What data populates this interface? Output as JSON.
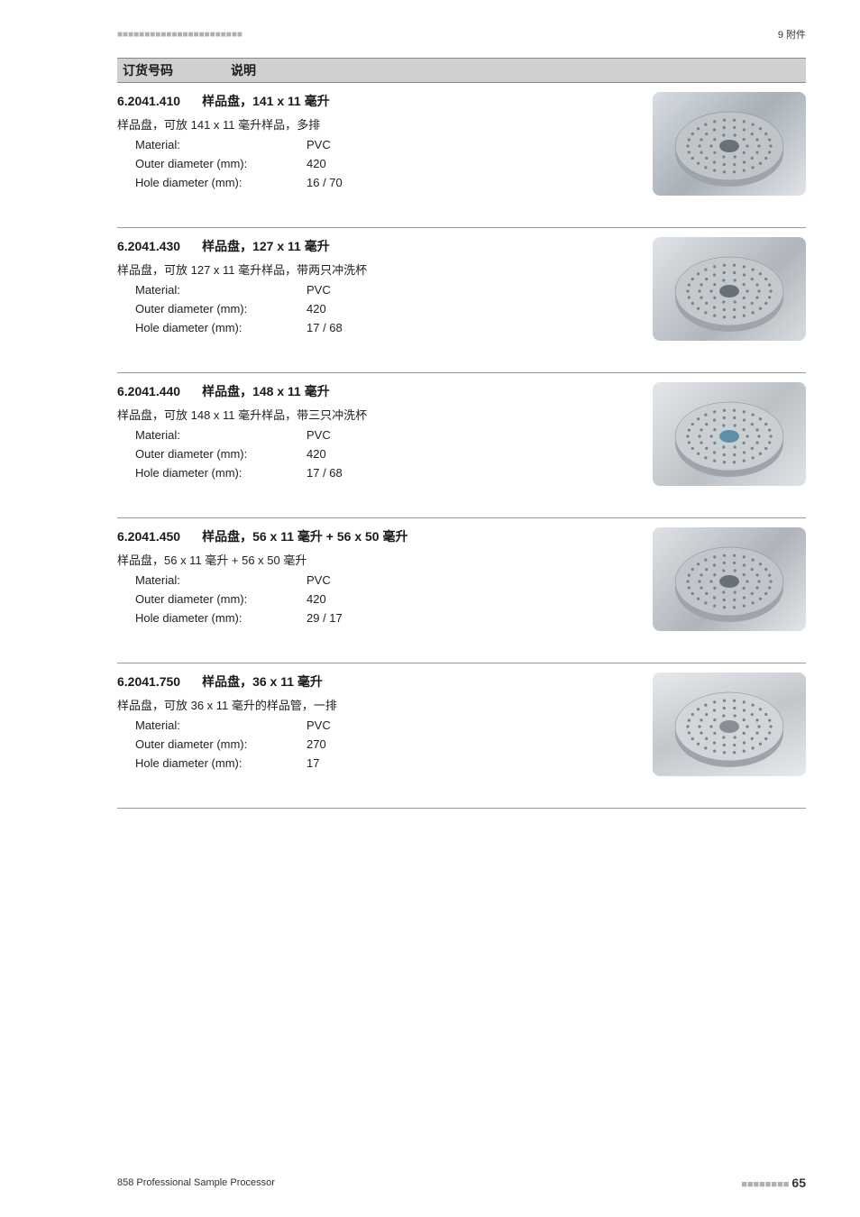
{
  "topbar": {
    "left_dashes": "■■■■■■■■■■■■■■■■■■■■■■■",
    "right": "9 附件"
  },
  "header": {
    "col1": "订货号码",
    "col2": "说明"
  },
  "products": [
    {
      "code": "6.2041.410",
      "name": "样品盘，141 x 11 毫升",
      "desc": "样品盘，可放 141 x 11 毫升样品，多排",
      "specs": [
        {
          "label": "Material:",
          "value": "PVC"
        },
        {
          "label": "Outer diameter (mm):",
          "value": "420"
        },
        {
          "label": "Hole diameter (mm):",
          "value": "16 / 70"
        }
      ],
      "img_bg": "linear-gradient(135deg,#d8dde2 0%,#a8b0b8 50%,#e0e4e8 100%)",
      "disc_color": "#c0c5ca",
      "hub_color": "#6a7078"
    },
    {
      "code": "6.2041.430",
      "name": "样品盘，127 x 11 毫升",
      "desc": "样品盘，可放 127 x 11 毫升样品，带两只冲洗杯",
      "specs": [
        {
          "label": "Material:",
          "value": "PVC"
        },
        {
          "label": "Outer diameter (mm):",
          "value": "420"
        },
        {
          "label": "Hole diameter (mm):",
          "value": "17 / 68"
        }
      ],
      "img_bg": "linear-gradient(135deg,#e0e4e8 0%,#b0b6bc 60%,#d8dce0 100%)",
      "disc_color": "#c4c9ce",
      "hub_color": "#6a7078"
    },
    {
      "code": "6.2041.440",
      "name": "样品盘，148 x 11 毫升",
      "desc": "样品盘，可放 148 x 11 毫升样品，带三只冲洗杯",
      "specs": [
        {
          "label": "Material:",
          "value": "PVC"
        },
        {
          "label": "Outer diameter (mm):",
          "value": "420"
        },
        {
          "label": "Hole diameter (mm):",
          "value": "17 / 68"
        }
      ],
      "img_bg": "linear-gradient(135deg,#e4e7ea 0%,#bcc1c6 55%,#dfe3e7 100%)",
      "disc_color": "#cacfd4",
      "hub_color": "#5e8fa8"
    },
    {
      "code": "6.2041.450",
      "name": "样品盘，56 x 11 毫升 + 56 x 50 毫升",
      "desc": "样品盘，56 x 11 毫升 + 56 x 50 毫升",
      "specs": [
        {
          "label": "Material:",
          "value": "PVC"
        },
        {
          "label": "Outer diameter (mm):",
          "value": "420"
        },
        {
          "label": "Hole diameter (mm):",
          "value": "29 / 17"
        }
      ],
      "img_bg": "linear-gradient(135deg,#dfe3e7 0%,#aeb4ba 55%,#e2e6ea 100%)",
      "disc_color": "#c0c6cc",
      "hub_color": "#6a7078"
    },
    {
      "code": "6.2041.750",
      "name": "样品盘，36 x 11 毫升",
      "desc": "样品盘，可放 36 x 11 毫升的样品管，一排",
      "specs": [
        {
          "label": "Material:",
          "value": "PVC"
        },
        {
          "label": "Outer diameter (mm):",
          "value": "270"
        },
        {
          "label": "Hole diameter (mm):",
          "value": "17"
        }
      ],
      "img_bg": "linear-gradient(160deg,#e6e9ec 0%,#c2c7cc 50%,#e6e9ec 100%)",
      "disc_color": "#d2d6da",
      "hub_color": "#888e94"
    }
  ],
  "footer": {
    "left": "858 Professional Sample Processor",
    "right_dashes": "■■■■■■■■",
    "page": "65"
  }
}
